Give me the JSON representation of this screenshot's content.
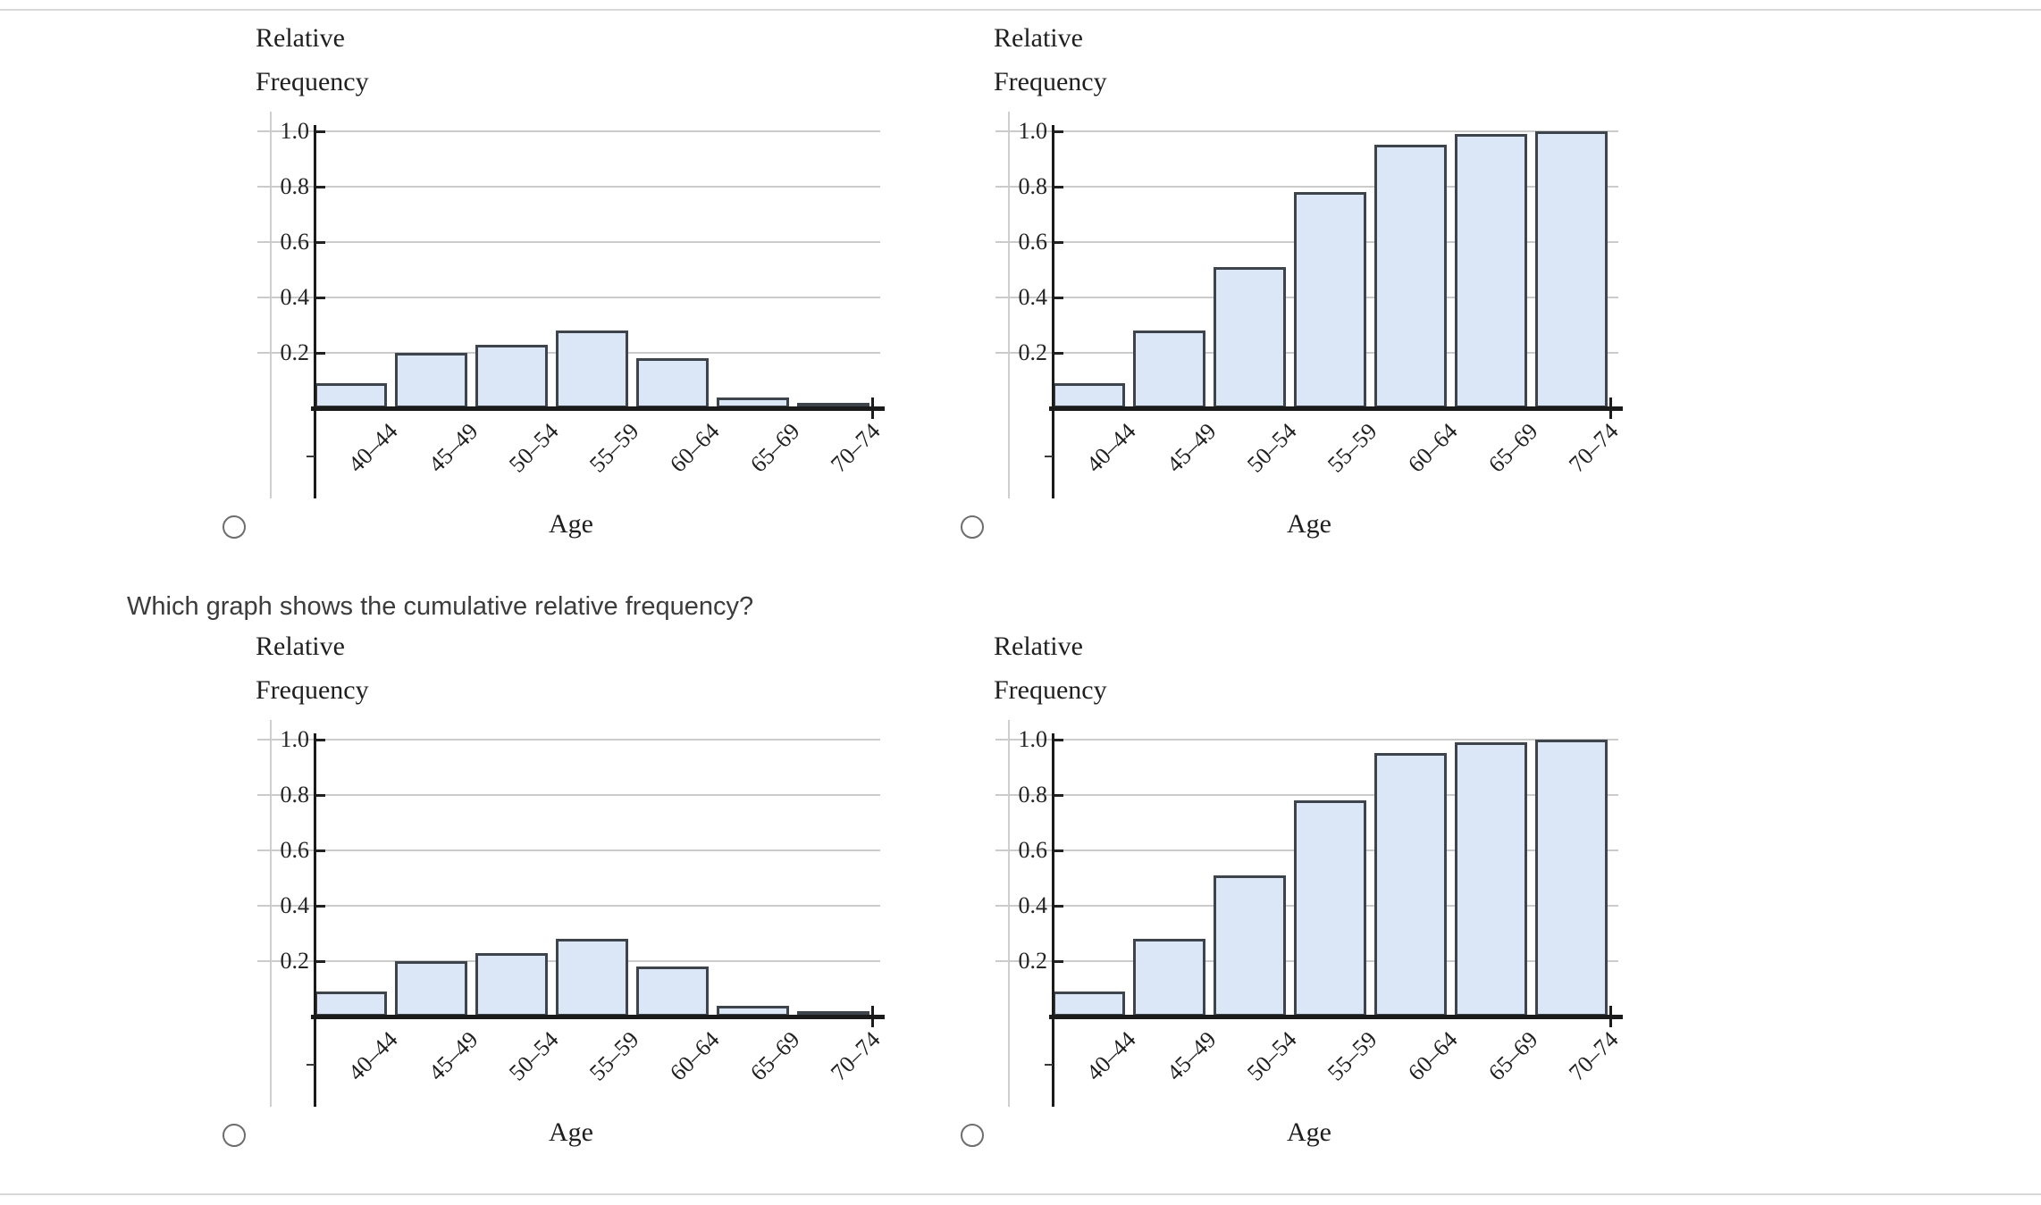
{
  "question": "Which graph shows the cumulative relative frequency?",
  "colors": {
    "bar_fill": "#dbe7f6",
    "bar_border": "#3e444c",
    "axis": "#1b1b1b",
    "gridline": "#cbcbcb",
    "side_guide_line": "#cfcfcf",
    "tick_text": "#242424",
    "chart_text": "#1f1f1f",
    "question_text": "#3c3c3c",
    "radio_border": "#6d6d6d",
    "panel_border": "#d8d8d8"
  },
  "options": [
    {
      "position": "top-left",
      "selected": false
    },
    {
      "position": "top-right",
      "selected": false
    },
    {
      "position": "bottom-left",
      "selected": false
    },
    {
      "position": "bottom-right",
      "selected": false
    }
  ],
  "chart_data": [
    {
      "id": "top-left",
      "type": "bar",
      "cumulative": false,
      "title": "Relative Frequency",
      "ylabel_lines": [
        "Relative",
        "Frequency"
      ],
      "xlabel": "Age",
      "categories": [
        "40–44",
        "45–49",
        "50–54",
        "55–59",
        "60–64",
        "65–69",
        "70–74"
      ],
      "values": [
        0.09,
        0.2,
        0.23,
        0.28,
        0.18,
        0.04,
        0.02
      ],
      "yticks": [
        0.2,
        0.4,
        0.6,
        0.8,
        1.0
      ],
      "ytick_labels": [
        "0.2",
        "0.4",
        "0.6",
        "0.8",
        "1.0"
      ],
      "ylim": [
        0,
        1.05
      ],
      "grid": true,
      "legend": null
    },
    {
      "id": "top-right",
      "type": "bar",
      "cumulative": true,
      "title": "Relative Frequency",
      "ylabel_lines": [
        "Relative",
        "Frequency"
      ],
      "xlabel": "Age",
      "categories": [
        "40–44",
        "45–49",
        "50–54",
        "55–59",
        "60–64",
        "65–69",
        "70–74"
      ],
      "values": [
        0.09,
        0.28,
        0.51,
        0.78,
        0.95,
        0.99,
        1.0
      ],
      "yticks": [
        0.2,
        0.4,
        0.6,
        0.8,
        1.0
      ],
      "ytick_labels": [
        "0.2",
        "0.4",
        "0.6",
        "0.8",
        "1.0"
      ],
      "ylim": [
        0,
        1.05
      ],
      "grid": true,
      "legend": null
    },
    {
      "id": "bottom-left",
      "type": "bar",
      "cumulative": false,
      "title": "Relative Frequency",
      "ylabel_lines": [
        "Relative",
        "Frequency"
      ],
      "xlabel": "Age",
      "categories": [
        "40–44",
        "45–49",
        "50–54",
        "55–59",
        "60–64",
        "65–69",
        "70–74"
      ],
      "values": [
        0.09,
        0.2,
        0.23,
        0.28,
        0.18,
        0.04,
        0.02
      ],
      "yticks": [
        0.2,
        0.4,
        0.6,
        0.8,
        1.0
      ],
      "ytick_labels": [
        "0.2",
        "0.4",
        "0.6",
        "0.8",
        "1.0"
      ],
      "ylim": [
        0,
        1.05
      ],
      "grid": true,
      "legend": null
    },
    {
      "id": "bottom-right",
      "type": "bar",
      "cumulative": true,
      "title": "Relative Frequency",
      "ylabel_lines": [
        "Relative",
        "Frequency"
      ],
      "xlabel": "Age",
      "categories": [
        "40–44",
        "45–49",
        "50–54",
        "55–59",
        "60–64",
        "65–69",
        "70–74"
      ],
      "values": [
        0.09,
        0.28,
        0.51,
        0.78,
        0.95,
        0.99,
        1.0
      ],
      "yticks": [
        0.2,
        0.4,
        0.6,
        0.8,
        1.0
      ],
      "ytick_labels": [
        "0.2",
        "0.4",
        "0.6",
        "0.8",
        "1.0"
      ],
      "ylim": [
        0,
        1.05
      ],
      "grid": true,
      "legend": null
    }
  ]
}
